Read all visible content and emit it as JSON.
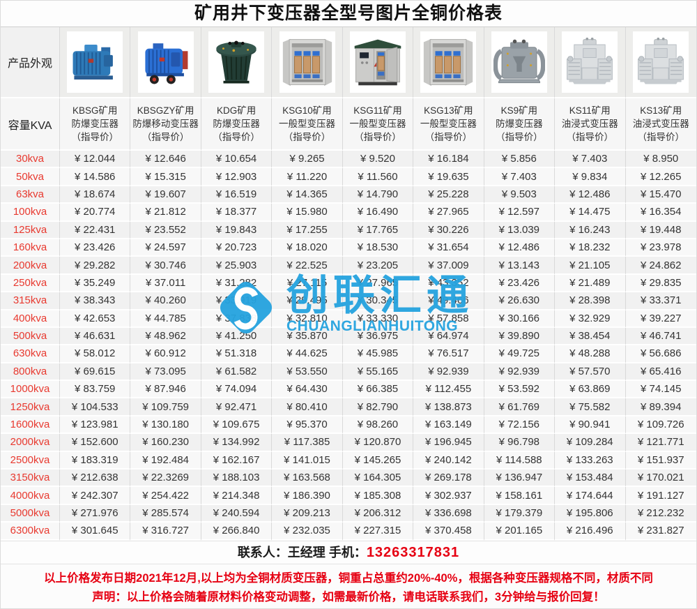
{
  "title": "矿用井下变压器全型号图片全铜价格表",
  "currency": "¥",
  "colors": {
    "label_red": "#e8392f",
    "note_red": "#e60012",
    "watermark_blue": "#25a3df",
    "price_text": "#333333"
  },
  "row_labels": {
    "appearance": "产品外观",
    "capacity": "容量KVA"
  },
  "products": [
    {
      "id": "kbsg",
      "name_lines": [
        "KBSG矿用",
        "防爆变压器",
        "（指导价）"
      ],
      "image": "blue-ribbed-transformer"
    },
    {
      "id": "kbsgzy",
      "name_lines": [
        "KBSGZY矿用",
        "防爆移动变压器",
        "（指导价）"
      ],
      "image": "blue-wheeled-transformer"
    },
    {
      "id": "kdg",
      "name_lines": [
        "KDG矿用",
        "防爆变压器",
        "（指导价）"
      ],
      "image": "dark-round-transformer"
    },
    {
      "id": "ksg10",
      "name_lines": [
        "KSG10矿用",
        "一般型变压器",
        "（指导价）"
      ],
      "image": "steel-cabinet-open"
    },
    {
      "id": "ksg11",
      "name_lines": [
        "KSG11矿用",
        "一般型变压器",
        "（指导价）"
      ],
      "image": "steel-cabinet-door"
    },
    {
      "id": "ksg13",
      "name_lines": [
        "KSG13矿用",
        "一般型变压器",
        "（指导价）"
      ],
      "image": "steel-cabinet-open"
    },
    {
      "id": "ks9",
      "name_lines": [
        "KS9矿用",
        "防爆变压器",
        "（指导价）"
      ],
      "image": "gray-round-transformer"
    },
    {
      "id": "ks11",
      "name_lines": [
        "KS11矿用",
        "油浸式变压器",
        "（指导价）"
      ],
      "image": "light-radiator-transformer"
    },
    {
      "id": "ks13",
      "name_lines": [
        "KS13矿用",
        "油浸式变压器",
        "（指导价）"
      ],
      "image": "light-radiator-transformer"
    }
  ],
  "price_rows": [
    {
      "capacity": "30kva",
      "prices": [
        "12.044",
        "12.646",
        "10.654",
        "9.265",
        "9.520",
        "16.184",
        "5.856",
        "7.403",
        "8.950"
      ]
    },
    {
      "capacity": "50kva",
      "prices": [
        "14.586",
        "15.315",
        "12.903",
        "11.220",
        "11.560",
        "19.635",
        "7.403",
        "9.834",
        "12.265"
      ]
    },
    {
      "capacity": "63kva",
      "prices": [
        "18.674",
        "19.607",
        "16.519",
        "14.365",
        "14.790",
        "25.228",
        "9.503",
        "12.486",
        "15.470"
      ]
    },
    {
      "capacity": "100kva",
      "prices": [
        "20.774",
        "21.812",
        "18.377",
        "15.980",
        "16.490",
        "27.965",
        "12.597",
        "14.475",
        "16.354"
      ]
    },
    {
      "capacity": "125kva",
      "prices": [
        "22.431",
        "23.552",
        "19.843",
        "17.255",
        "17.765",
        "30.226",
        "13.039",
        "16.243",
        "19.448"
      ]
    },
    {
      "capacity": "160kva",
      "prices": [
        "23.426",
        "24.597",
        "20.723",
        "18.020",
        "18.530",
        "31.654",
        "12.486",
        "18.232",
        "23.978"
      ]
    },
    {
      "capacity": "200kva",
      "prices": [
        "29.282",
        "30.746",
        "25.903",
        "22.525",
        "23.205",
        "37.009",
        "13.143",
        "21.105",
        "24.862"
      ]
    },
    {
      "capacity": "250kva",
      "prices": [
        "35.249",
        "37.011",
        "31.282",
        "27.115",
        "27.965",
        "43.352",
        "23.426",
        "21.489",
        "29.835"
      ]
    },
    {
      "capacity": "315kva",
      "prices": [
        "38.343",
        "40.260",
        "33.919",
        "29.495",
        "30.345",
        "49.466",
        "26.630",
        "28.398",
        "33.371"
      ]
    },
    {
      "capacity": "400kva",
      "prices": [
        "42.653",
        "44.785",
        "37.838",
        "32.810",
        "33.330",
        "57.858",
        "30.166",
        "32.929",
        "39.227"
      ]
    },
    {
      "capacity": "500kva",
      "prices": [
        "46.631",
        "48.962",
        "41.250",
        "35.870",
        "36.975",
        "64.974",
        "39.890",
        "38.454",
        "46.741"
      ]
    },
    {
      "capacity": "630kva",
      "prices": [
        "58.012",
        "60.912",
        "51.318",
        "44.625",
        "45.985",
        "76.517",
        "49.725",
        "48.288",
        "56.686"
      ]
    },
    {
      "capacity": "800kva",
      "prices": [
        "69.615",
        "73.095",
        "61.582",
        "53.550",
        "55.165",
        "92.939",
        "92.939",
        "57.570",
        "65.416"
      ]
    },
    {
      "capacity": "1000kva",
      "prices": [
        "83.759",
        "87.946",
        "74.094",
        "64.430",
        "66.385",
        "112.455",
        "53.592",
        "63.869",
        "74.145"
      ]
    },
    {
      "capacity": "1250kva",
      "prices": [
        "104.533",
        "109.759",
        "92.471",
        "80.410",
        "82.790",
        "138.873",
        "61.769",
        "75.582",
        "89.394"
      ]
    },
    {
      "capacity": "1600kva",
      "prices": [
        "123.981",
        "130.180",
        "109.675",
        "95.370",
        "98.260",
        "163.149",
        "72.156",
        "90.941",
        "109.726"
      ]
    },
    {
      "capacity": "2000kva",
      "prices": [
        "152.600",
        "160.230",
        "134.992",
        "117.385",
        "120.870",
        "196.945",
        "96.798",
        "109.284",
        "121.771"
      ]
    },
    {
      "capacity": "2500kva",
      "prices": [
        "183.319",
        "192.484",
        "162.167",
        "141.015",
        "145.265",
        "240.142",
        "114.588",
        "133.263",
        "151.937"
      ]
    },
    {
      "capacity": "3150kva",
      "prices": [
        "212.638",
        "22.3269",
        "188.103",
        "163.568",
        "164.305",
        "269.178",
        "136.947",
        "153.484",
        "170.021"
      ]
    },
    {
      "capacity": "4000kva",
      "prices": [
        "242.307",
        "254.422",
        "214.348",
        "186.390",
        "185.308",
        "302.937",
        "158.161",
        "174.644",
        "191.127"
      ]
    },
    {
      "capacity": "5000kva",
      "prices": [
        "271.976",
        "285.574",
        "240.594",
        "209.213",
        "206.312",
        "336.698",
        "179.379",
        "195.806",
        "212.232"
      ]
    },
    {
      "capacity": "6300kva",
      "prices": [
        "301.645",
        "316.727",
        "266.840",
        "232.035",
        "227.315",
        "370.458",
        "201.165",
        "216.496",
        "231.827"
      ]
    }
  ],
  "watermark": {
    "text": "创联汇通",
    "subtext": "CHUANGLIANHUITONG"
  },
  "contact": {
    "label": "联系人：王经理  手机：",
    "phone": "13263317831"
  },
  "notes": [
    "以上价格发布日期2021年12月,以上均为全铜材质变压器，铜重占总重约20%-40%，根据各种变压器规格不同，材质不同",
    "声明：以上价格会随着原材料价格变动调整，如需最新价格，请电话联系我们，3分钟给与报价回复！"
  ]
}
